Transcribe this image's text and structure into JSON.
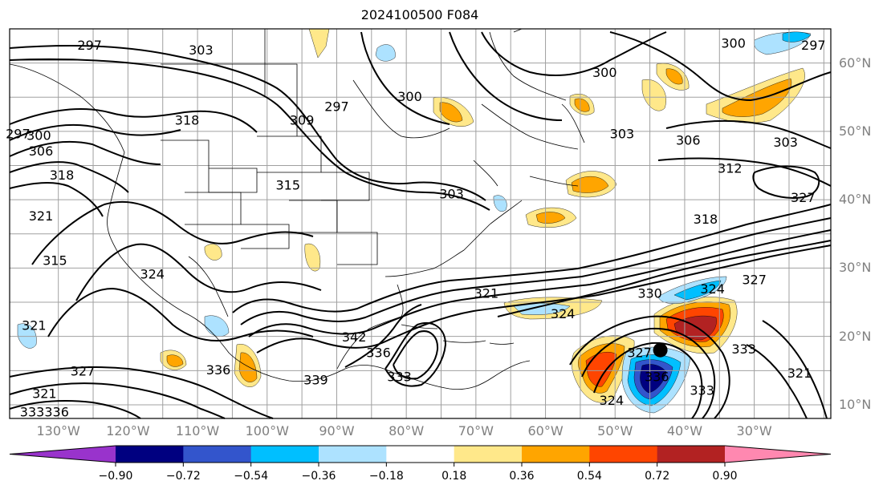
{
  "title": "2024100500 F084",
  "map": {
    "projection": "plate-carree",
    "lon_range": [
      -137,
      -19
    ],
    "lat_range": [
      8,
      65
    ],
    "lat_labels": [
      {
        "lat": 60,
        "text": "60°N"
      },
      {
        "lat": 50,
        "text": "50°N"
      },
      {
        "lat": 40,
        "text": "40°N"
      },
      {
        "lat": 30,
        "text": "30°N"
      },
      {
        "lat": 20,
        "text": "20°N"
      },
      {
        "lat": 10,
        "text": "10°N"
      }
    ],
    "lon_labels": [
      {
        "lon": -130,
        "text": "130°W"
      },
      {
        "lon": -120,
        "text": "120°W"
      },
      {
        "lon": -110,
        "text": "110°W"
      },
      {
        "lon": -100,
        "text": "100°W"
      },
      {
        "lon": -90,
        "text": "90°W"
      },
      {
        "lon": -80,
        "text": "80°W"
      },
      {
        "lon": -70,
        "text": "70°W"
      },
      {
        "lon": -60,
        "text": "60°W"
      },
      {
        "lon": -50,
        "text": "50°W"
      },
      {
        "lon": -40,
        "text": "40°W"
      },
      {
        "lon": -30,
        "text": "30°W"
      }
    ],
    "gridlines": true,
    "contour_labels": [
      {
        "text": "297",
        "lon": -125.5,
        "lat": 62.5
      },
      {
        "text": "303",
        "lon": -109.5,
        "lat": 61.8
      },
      {
        "text": "297",
        "lon": -135.8,
        "lat": 49.5
      },
      {
        "text": "300",
        "lon": -132.8,
        "lat": 49.3
      },
      {
        "text": "306",
        "lon": -132.5,
        "lat": 47.0
      },
      {
        "text": "318",
        "lon": -111.5,
        "lat": 51.5
      },
      {
        "text": "309",
        "lon": -95.0,
        "lat": 51.5
      },
      {
        "text": "297",
        "lon": -90.0,
        "lat": 53.5
      },
      {
        "text": "300",
        "lon": -79.5,
        "lat": 55.0
      },
      {
        "text": "318",
        "lon": -129.5,
        "lat": 43.5
      },
      {
        "text": "321",
        "lon": -132.5,
        "lat": 37.5
      },
      {
        "text": "315",
        "lon": -130.5,
        "lat": 31.0
      },
      {
        "text": "315",
        "lon": -97.0,
        "lat": 42.0
      },
      {
        "text": "303",
        "lon": -73.5,
        "lat": 40.7
      },
      {
        "text": "300",
        "lon": -33.0,
        "lat": 62.8
      },
      {
        "text": "297",
        "lon": -21.5,
        "lat": 62.5
      },
      {
        "text": "300",
        "lon": -51.5,
        "lat": 58.5
      },
      {
        "text": "303",
        "lon": -49.0,
        "lat": 49.5
      },
      {
        "text": "306",
        "lon": -39.5,
        "lat": 48.6
      },
      {
        "text": "303",
        "lon": -25.5,
        "lat": 48.3
      },
      {
        "text": "312",
        "lon": -33.5,
        "lat": 44.5
      },
      {
        "text": "327",
        "lon": -23.0,
        "lat": 40.2
      },
      {
        "text": "318",
        "lon": -37.0,
        "lat": 37.0
      },
      {
        "text": "324",
        "lon": -116.5,
        "lat": 29.0
      },
      {
        "text": "321",
        "lon": -133.5,
        "lat": 21.5
      },
      {
        "text": "321",
        "lon": -68.5,
        "lat": 26.2
      },
      {
        "text": "324",
        "lon": -57.5,
        "lat": 23.2
      },
      {
        "text": "330",
        "lon": -45.0,
        "lat": 26.2
      },
      {
        "text": "324",
        "lon": -36.0,
        "lat": 26.8
      },
      {
        "text": "327",
        "lon": -30.0,
        "lat": 28.2
      },
      {
        "text": "342",
        "lon": -87.5,
        "lat": 19.8
      },
      {
        "text": "336",
        "lon": -84.0,
        "lat": 17.5
      },
      {
        "text": "333",
        "lon": -81.0,
        "lat": 14.0
      },
      {
        "text": "339",
        "lon": -93.0,
        "lat": 13.5
      },
      {
        "text": "327",
        "lon": -126.5,
        "lat": 14.8
      },
      {
        "text": "321",
        "lon": -132.0,
        "lat": 11.5
      },
      {
        "text": "333336",
        "lon": -132.0,
        "lat": 8.8
      },
      {
        "text": "336",
        "lon": -107.0,
        "lat": 15.0
      },
      {
        "text": "327",
        "lon": -46.5,
        "lat": 17.5
      },
      {
        "text": "336",
        "lon": -44.0,
        "lat": 14.0
      },
      {
        "text": "324",
        "lon": -50.5,
        "lat": 10.5
      },
      {
        "text": "333",
        "lon": -37.5,
        "lat": 12.0
      },
      {
        "text": "333",
        "lon": -31.5,
        "lat": 18.0
      },
      {
        "text": "321",
        "lon": -23.5,
        "lat": 14.5
      }
    ],
    "storm_center": {
      "lon": -43.5,
      "lat": 18.0
    }
  },
  "colorbar": {
    "tick_labels": [
      "−0.90",
      "−0.72",
      "−0.54",
      "−0.36",
      "−0.18",
      "0.18",
      "0.36",
      "0.54",
      "0.72",
      "0.90"
    ],
    "tick_values": [
      -0.9,
      -0.72,
      -0.54,
      -0.36,
      -0.18,
      0.18,
      0.36,
      0.54,
      0.72,
      0.9
    ],
    "colors": [
      "#9933cc",
      "#000080",
      "#3355cc",
      "#00bfff",
      "#ade2ff",
      "#ffffff",
      "#ffe88a",
      "#ffa500",
      "#ff4500",
      "#b22222",
      "#ff88b0"
    ],
    "extend": "both"
  }
}
